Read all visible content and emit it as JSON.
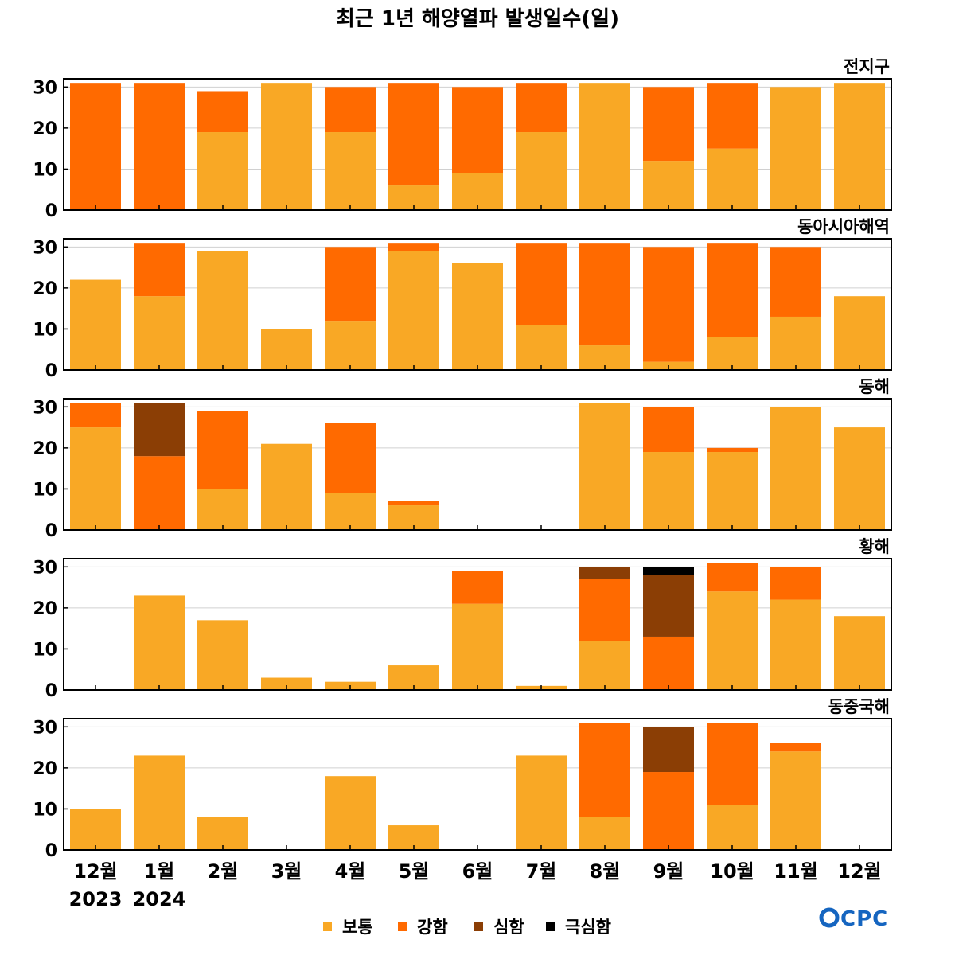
{
  "title": "최근 1년 해양열파 발생일수(일)",
  "logo": "OCPC",
  "colors": {
    "보통": "#F9A825",
    "강함": "#FF6A00",
    "심함": "#8B3E05",
    "극심함": "#000000",
    "grid": "#d0d0d0",
    "axis": "#000000"
  },
  "legend": [
    {
      "key": "보통",
      "label": "보통"
    },
    {
      "key": "강함",
      "label": "강함"
    },
    {
      "key": "심함",
      "label": "심함"
    },
    {
      "key": "극심함",
      "label": "극심함"
    }
  ],
  "chart_data": {
    "type": "bar",
    "stacked": true,
    "categories": [
      "12월",
      "1월",
      "2월",
      "3월",
      "4월",
      "5월",
      "6월",
      "7월",
      "8월",
      "9월",
      "10월",
      "11월",
      "12월"
    ],
    "year_labels": [
      {
        "index": 0,
        "label": "2023"
      },
      {
        "index": 1,
        "label": "2024"
      }
    ],
    "ylim": [
      0,
      32
    ],
    "yticks": [
      0,
      10,
      20,
      30
    ],
    "grid": true,
    "legend_position": "bottom",
    "panels": [
      {
        "name": "전지구",
        "series": [
          {
            "name": "보통",
            "values": [
              0,
              0,
              19,
              31,
              19,
              6,
              9,
              19,
              31,
              12,
              15,
              30,
              31
            ]
          },
          {
            "name": "강함",
            "values": [
              31,
              31,
              10,
              0,
              11,
              25,
              21,
              12,
              0,
              18,
              16,
              0,
              0
            ]
          },
          {
            "name": "심함",
            "values": [
              0,
              0,
              0,
              0,
              0,
              0,
              0,
              0,
              0,
              0,
              0,
              0,
              0
            ]
          },
          {
            "name": "극심함",
            "values": [
              0,
              0,
              0,
              0,
              0,
              0,
              0,
              0,
              0,
              0,
              0,
              0,
              0
            ]
          }
        ]
      },
      {
        "name": "동아시아해역",
        "series": [
          {
            "name": "보통",
            "values": [
              22,
              18,
              29,
              10,
              12,
              29,
              26,
              11,
              6,
              2,
              8,
              13,
              18
            ]
          },
          {
            "name": "강함",
            "values": [
              0,
              13,
              0,
              0,
              18,
              2,
              0,
              20,
              25,
              28,
              23,
              17,
              0
            ]
          },
          {
            "name": "심함",
            "values": [
              0,
              0,
              0,
              0,
              0,
              0,
              0,
              0,
              0,
              0,
              0,
              0,
              0
            ]
          },
          {
            "name": "극심함",
            "values": [
              0,
              0,
              0,
              0,
              0,
              0,
              0,
              0,
              0,
              0,
              0,
              0,
              0
            ]
          }
        ]
      },
      {
        "name": "동해",
        "series": [
          {
            "name": "보통",
            "values": [
              25,
              0,
              10,
              21,
              9,
              6,
              0,
              0,
              31,
              19,
              19,
              30,
              25
            ]
          },
          {
            "name": "강함",
            "values": [
              6,
              18,
              19,
              0,
              17,
              1,
              0,
              0,
              0,
              11,
              1,
              0,
              0
            ]
          },
          {
            "name": "심함",
            "values": [
              0,
              13,
              0,
              0,
              0,
              0,
              0,
              0,
              0,
              0,
              0,
              0,
              0
            ]
          },
          {
            "name": "극심함",
            "values": [
              0,
              0,
              0,
              0,
              0,
              0,
              0,
              0,
              0,
              0,
              0,
              0,
              0
            ]
          }
        ]
      },
      {
        "name": "황해",
        "series": [
          {
            "name": "보통",
            "values": [
              0,
              23,
              17,
              3,
              2,
              6,
              21,
              1,
              12,
              0,
              24,
              22,
              18
            ]
          },
          {
            "name": "강함",
            "values": [
              0,
              0,
              0,
              0,
              0,
              0,
              8,
              0,
              15,
              13,
              7,
              8,
              0
            ]
          },
          {
            "name": "심함",
            "values": [
              0,
              0,
              0,
              0,
              0,
              0,
              0,
              0,
              3,
              15,
              0,
              0,
              0
            ]
          },
          {
            "name": "극심함",
            "values": [
              0,
              0,
              0,
              0,
              0,
              0,
              0,
              0,
              0,
              2,
              0,
              0,
              0
            ]
          }
        ]
      },
      {
        "name": "동중국해",
        "series": [
          {
            "name": "보통",
            "values": [
              10,
              23,
              8,
              0,
              18,
              6,
              0,
              23,
              8,
              0,
              11,
              24,
              0
            ]
          },
          {
            "name": "강함",
            "values": [
              0,
              0,
              0,
              0,
              0,
              0,
              0,
              0,
              23,
              19,
              20,
              2,
              0
            ]
          },
          {
            "name": "심함",
            "values": [
              0,
              0,
              0,
              0,
              0,
              0,
              0,
              0,
              0,
              11,
              0,
              0,
              0
            ]
          },
          {
            "name": "극심함",
            "values": [
              0,
              0,
              0,
              0,
              0,
              0,
              0,
              0,
              0,
              0,
              0,
              0,
              0
            ]
          }
        ]
      }
    ]
  }
}
